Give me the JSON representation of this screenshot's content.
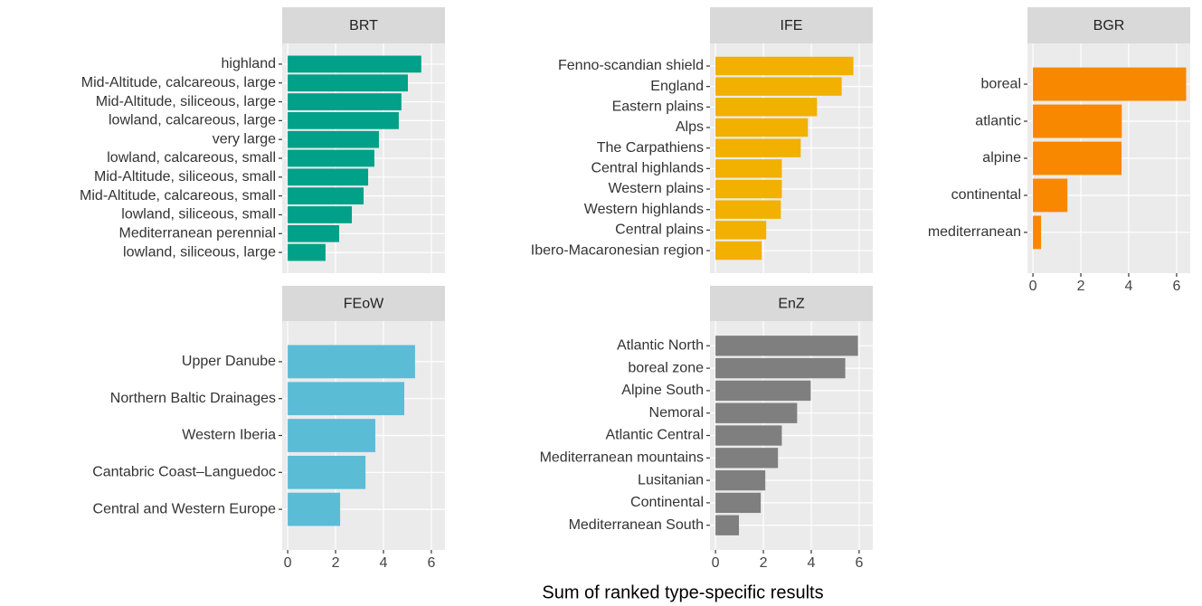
{
  "chart_data": [
    {
      "type": "bar",
      "orientation": "horizontal",
      "title": "BRT",
      "color": "#01a088",
      "categories": [
        "highland",
        "Mid-Altitude, calcareous, large",
        "Mid-Altitude, siliceous, large",
        "lowland, calcareous, large",
        "very large",
        "lowland, calcareous, small",
        "Mid-Altitude, siliceous, small",
        "Mid-Altitude, calcareous, small",
        "lowland, siliceous, small",
        "Mediterranean perennial",
        "lowland, siliceous, large"
      ],
      "values": [
        5.58,
        5.02,
        4.75,
        4.64,
        3.81,
        3.62,
        3.36,
        3.17,
        2.68,
        2.15,
        1.58
      ],
      "xlim": [
        -0.23,
        6.57
      ],
      "xticks": [
        0,
        2,
        4,
        6
      ],
      "grid": true
    },
    {
      "type": "bar",
      "orientation": "horizontal",
      "title": "IFE",
      "color": "#f2b000",
      "categories": [
        "Fenno-scandian shield",
        "England",
        "Eastern plains",
        "Alps",
        "The Carpathiens",
        "Central highlands",
        "Western plains",
        "Western highlands",
        "Central plains",
        "Ibero-Macaronesian region"
      ],
      "values": [
        5.76,
        5.27,
        4.24,
        3.86,
        3.56,
        2.77,
        2.77,
        2.73,
        2.12,
        1.93
      ],
      "xlim": [
        -0.23,
        6.57
      ],
      "xticks": [
        0,
        2,
        4,
        6
      ],
      "grid": true
    },
    {
      "type": "bar",
      "orientation": "horizontal",
      "title": "BGR",
      "color": "#f78800",
      "categories": [
        "boreal",
        "atlantic",
        "alpine",
        "continental",
        "mediterranean"
      ],
      "values": [
        6.4,
        3.71,
        3.7,
        1.44,
        0.34
      ],
      "xlim": [
        -0.23,
        6.57
      ],
      "xticks": [
        0,
        2,
        4,
        6
      ],
      "grid": true
    },
    {
      "type": "bar",
      "orientation": "horizontal",
      "title": "FEoW",
      "color": "#5bbcd6",
      "categories": [
        "Upper Danube",
        "Northern Baltic Drainages",
        "Western Iberia",
        "Cantabric Coast–Languedoc",
        "Central and Western Europe"
      ],
      "values": [
        5.32,
        4.87,
        3.66,
        3.25,
        2.19
      ],
      "xlim": [
        -0.23,
        6.57
      ],
      "xticks": [
        0,
        2,
        4,
        6
      ],
      "grid": true
    },
    {
      "type": "bar",
      "orientation": "horizontal",
      "title": "EnZ",
      "color": "#7f7f7f",
      "categories": [
        "Atlantic North",
        "boreal zone",
        "Alpine South",
        "Nemoral",
        "Atlantic Central",
        "Mediterranean mountains",
        "Lusitanian",
        "Continental",
        "Mediterranean South"
      ],
      "values": [
        5.95,
        5.42,
        3.98,
        3.41,
        2.77,
        2.61,
        2.08,
        1.89,
        0.98
      ],
      "xlim": [
        -0.23,
        6.57
      ],
      "xticks": [
        0,
        2,
        4,
        6
      ],
      "grid": true
    }
  ],
  "xlabel": "Sum of ranked type-specific results"
}
